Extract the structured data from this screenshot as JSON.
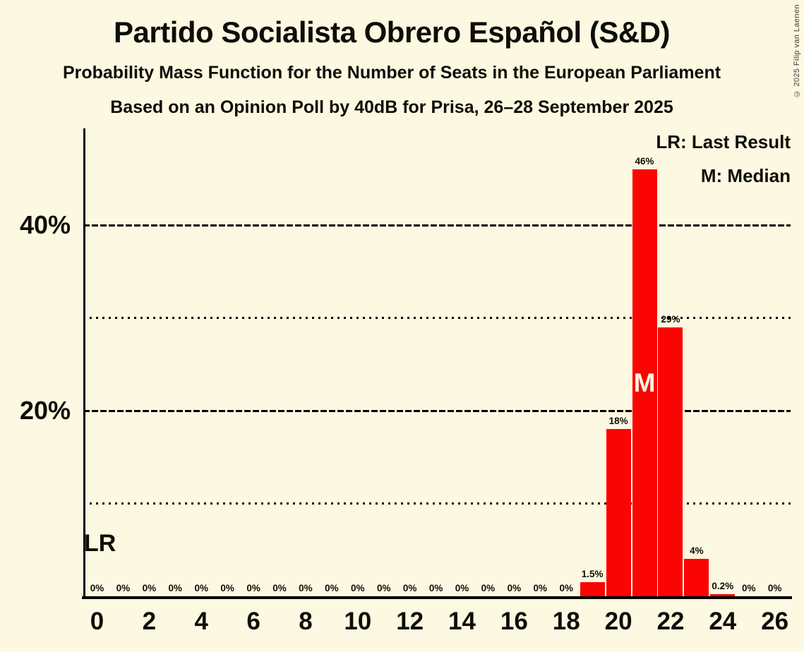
{
  "page": {
    "copyright": "© 2025 Filip van Laenen"
  },
  "chart_data": {
    "type": "bar",
    "title": "Partido Socialista Obrero Español (S&D)",
    "subtitle": "Probability Mass Function for the Number of Seats in the European Parliament",
    "source_line": "Based on an Opinion Poll by 40dB for Prisa, 26–28 September 2025",
    "legend": [
      "LR: Last Result",
      "M: Median"
    ],
    "seats": [
      0,
      1,
      2,
      3,
      4,
      5,
      6,
      7,
      8,
      9,
      10,
      11,
      12,
      13,
      14,
      15,
      16,
      17,
      18,
      19,
      20,
      21,
      22,
      23,
      24,
      25,
      26
    ],
    "values": [
      0,
      0,
      0,
      0,
      0,
      0,
      0,
      0,
      0,
      0,
      0,
      0,
      0,
      0,
      0,
      0,
      0,
      0,
      0,
      1.5,
      18,
      46,
      29,
      4,
      0.2,
      0,
      0
    ],
    "bar_labels": [
      "0%",
      "0%",
      "0%",
      "0%",
      "0%",
      "0%",
      "0%",
      "0%",
      "0%",
      "0%",
      "0%",
      "0%",
      "0%",
      "0%",
      "0%",
      "0%",
      "0%",
      "0%",
      "0%",
      "1.5%",
      "18%",
      "46%",
      "29%",
      "4%",
      "0.2%",
      "0%",
      "0%"
    ],
    "x_tick_labels": [
      "0",
      "2",
      "4",
      "6",
      "8",
      "10",
      "12",
      "14",
      "16",
      "18",
      "20",
      "22",
      "24",
      "26"
    ],
    "y_axis": {
      "max_percent": 50.4,
      "ticks": [
        {
          "value": 20,
          "label": "20%"
        },
        {
          "value": 40,
          "label": "40%"
        }
      ],
      "dashed_gridlines": [
        20,
        40
      ],
      "dotted_gridlines": [
        10,
        30
      ]
    },
    "median_seat": 21,
    "median_marker": "M",
    "last_result_marker": "LR",
    "colors": {
      "bar": "#FA0404",
      "background": "#FDF8E1",
      "text": "#0E0E08",
      "axis": "#000000",
      "median_text": "#FDF8E1"
    }
  }
}
